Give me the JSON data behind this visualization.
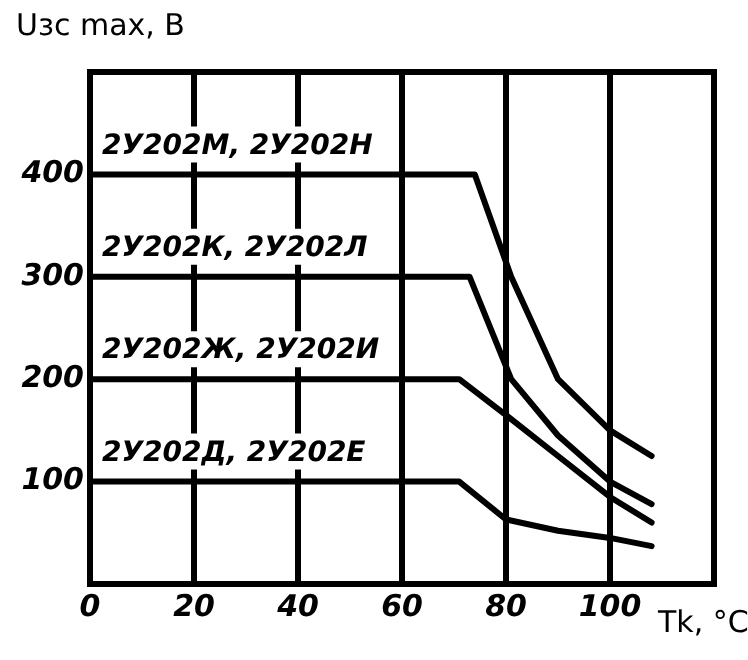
{
  "chart_data": {
    "type": "line",
    "xlabel": "Tk, °C",
    "ylabel": "Uзс max, В",
    "xlim": [
      0,
      120
    ],
    "ylim": [
      0,
      500
    ],
    "xticks": [
      0,
      20,
      40,
      60,
      80,
      100
    ],
    "yticks": [
      100,
      200,
      300,
      400
    ],
    "grid": "x",
    "legend": false,
    "marker": "none",
    "line_style": "solid",
    "series": [
      {
        "name": "2У202М, 2У202Н",
        "color": "#000000",
        "x": [
          0,
          74,
          81,
          90,
          100,
          108
        ],
        "values": [
          400,
          400,
          300,
          200,
          150,
          125
        ]
      },
      {
        "name": "2У202К, 2У202Л",
        "color": "#000000",
        "x": [
          0,
          73,
          81,
          90,
          100,
          108
        ],
        "values": [
          300,
          300,
          200,
          145,
          100,
          78
        ]
      },
      {
        "name": "2У202Ж, 2У202И",
        "color": "#000000",
        "x": [
          0,
          71,
          80,
          90,
          100,
          108
        ],
        "values": [
          200,
          200,
          165,
          125,
          85,
          60
        ]
      },
      {
        "name": "2У202Д, 2У202Е",
        "color": "#000000",
        "x": [
          0,
          71,
          80,
          90,
          100,
          108
        ],
        "values": [
          100,
          100,
          63,
          52,
          45,
          37
        ]
      }
    ]
  }
}
